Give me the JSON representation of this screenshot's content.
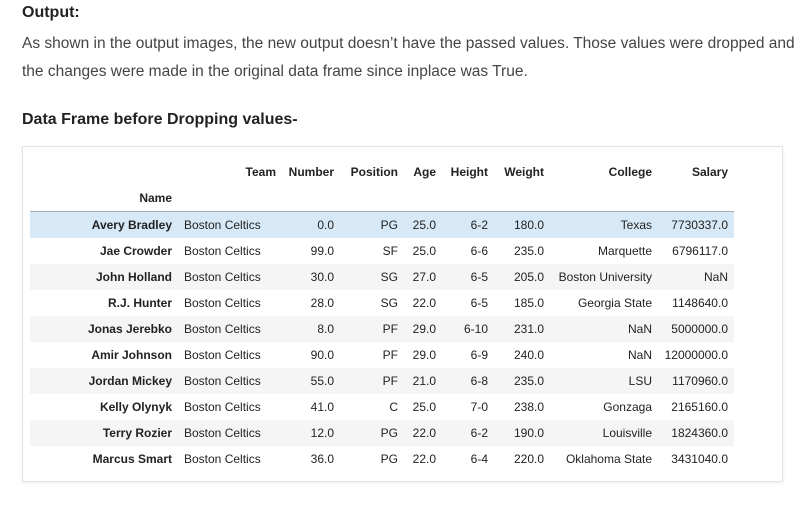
{
  "output_heading": "Output:",
  "output_text": "As shown in the output images, the new output doesn’t have the passed values. Those values were dropped and the changes were made in the original data frame since inplace was True.",
  "section_heading": "Data Frame before Dropping values-",
  "table": {
    "columns": [
      "Team",
      "Number",
      "Position",
      "Age",
      "Height",
      "Weight",
      "College",
      "Salary"
    ],
    "index_name": "Name",
    "rows": [
      {
        "name": "Avery Bradley",
        "cells": [
          "Boston Celtics",
          "0.0",
          "PG",
          "25.0",
          "6-2",
          "180.0",
          "Texas",
          "7730337.0"
        ]
      },
      {
        "name": "Jae Crowder",
        "cells": [
          "Boston Celtics",
          "99.0",
          "SF",
          "25.0",
          "6-6",
          "235.0",
          "Marquette",
          "6796117.0"
        ]
      },
      {
        "name": "John Holland",
        "cells": [
          "Boston Celtics",
          "30.0",
          "SG",
          "27.0",
          "6-5",
          "205.0",
          "Boston University",
          "NaN"
        ]
      },
      {
        "name": "R.J. Hunter",
        "cells": [
          "Boston Celtics",
          "28.0",
          "SG",
          "22.0",
          "6-5",
          "185.0",
          "Georgia State",
          "1148640.0"
        ]
      },
      {
        "name": "Jonas Jerebko",
        "cells": [
          "Boston Celtics",
          "8.0",
          "PF",
          "29.0",
          "6-10",
          "231.0",
          "NaN",
          "5000000.0"
        ]
      },
      {
        "name": "Amir Johnson",
        "cells": [
          "Boston Celtics",
          "90.0",
          "PF",
          "29.0",
          "6-9",
          "240.0",
          "NaN",
          "12000000.0"
        ]
      },
      {
        "name": "Jordan Mickey",
        "cells": [
          "Boston Celtics",
          "55.0",
          "PF",
          "21.0",
          "6-8",
          "235.0",
          "LSU",
          "1170960.0"
        ]
      },
      {
        "name": "Kelly Olynyk",
        "cells": [
          "Boston Celtics",
          "41.0",
          "C",
          "25.0",
          "7-0",
          "238.0",
          "Gonzaga",
          "2165160.0"
        ]
      },
      {
        "name": "Terry Rozier",
        "cells": [
          "Boston Celtics",
          "12.0",
          "PG",
          "22.0",
          "6-2",
          "190.0",
          "Louisville",
          "1824360.0"
        ]
      },
      {
        "name": "Marcus Smart",
        "cells": [
          "Boston Celtics",
          "36.0",
          "PG",
          "22.0",
          "6-4",
          "220.0",
          "Oklahoma State",
          "3431040.0"
        ]
      }
    ]
  },
  "colors": {
    "selected_row": "#d7e9f7",
    "striped_row": "#f5f5f5"
  }
}
